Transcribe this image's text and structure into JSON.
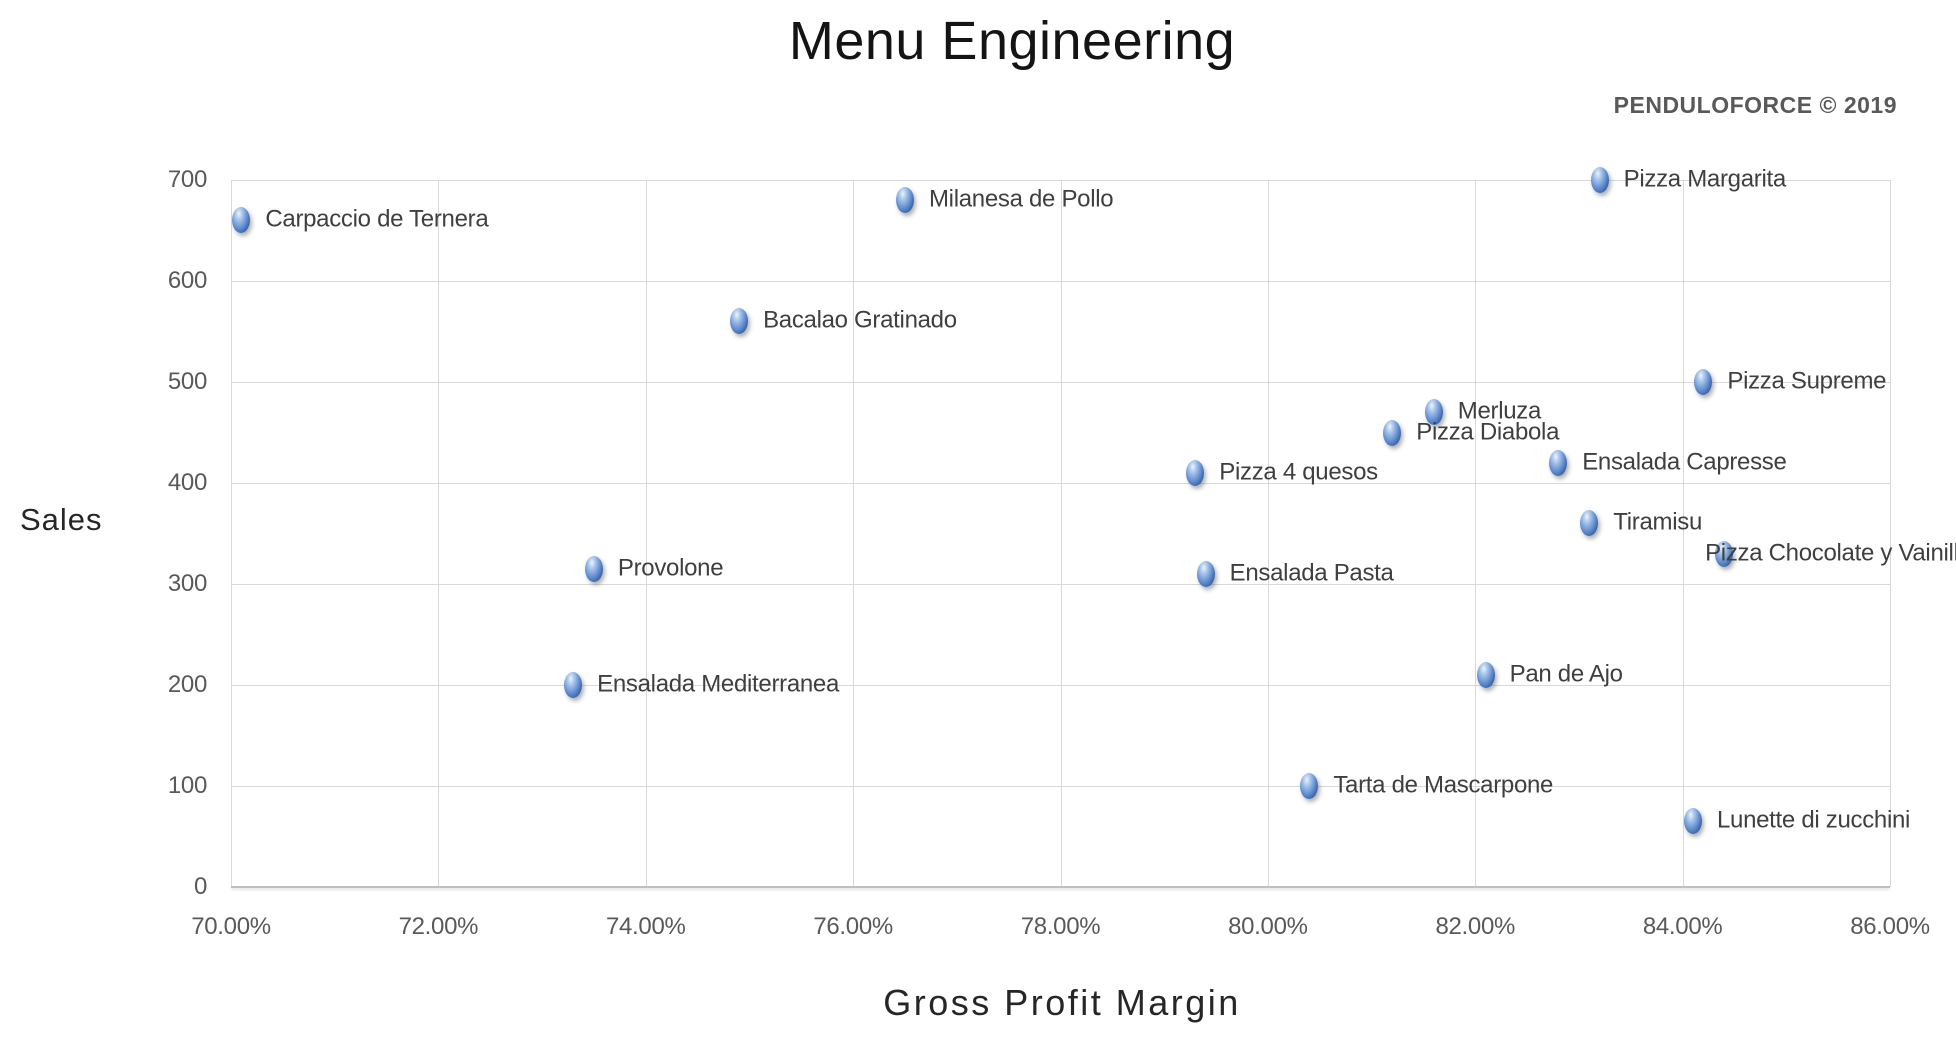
{
  "header": {
    "watermark": "PENDULOFORCE © 2019"
  },
  "colors": {
    "background": "#ffffff",
    "gridline": "#d9d9d9",
    "axis_line": "#bfbfbf",
    "tick_text": "#595959",
    "point_label_text": "#3f3f3f",
    "title_text": "#141414",
    "watermark_text": "#595959",
    "marker_blue_highlight": "#b9d2f0",
    "marker_blue_mid": "#4673b8",
    "marker_blue_dark": "#1d3a6c"
  },
  "chart_data": {
    "type": "scatter",
    "title": "Menu Engineering",
    "xlabel": "Gross Profit Margin",
    "ylabel": "Sales",
    "grid": true,
    "legend": "none",
    "x_axis": {
      "min": 70,
      "max": 86,
      "step": 2,
      "unit": "%",
      "tick_labels": [
        "70.00%",
        "72.00%",
        "74.00%",
        "76.00%",
        "78.00%",
        "80.00%",
        "82.00%",
        "84.00%",
        "86.00%"
      ]
    },
    "y_axis": {
      "min": 0,
      "max": 700,
      "step": 100,
      "tick_labels": [
        "0",
        "100",
        "200",
        "300",
        "400",
        "500",
        "600",
        "700"
      ]
    },
    "points": [
      {
        "label": "Carpaccio de Ternera",
        "gpm": 70.1,
        "sales": 660
      },
      {
        "label": "Milanesa de Pollo",
        "gpm": 76.5,
        "sales": 680
      },
      {
        "label": "Pizza Margarita",
        "gpm": 83.2,
        "sales": 700
      },
      {
        "label": "Bacalao Gratinado",
        "gpm": 74.9,
        "sales": 560
      },
      {
        "label": "Pizza Supreme",
        "gpm": 84.2,
        "sales": 500
      },
      {
        "label": "Merluza",
        "gpm": 81.6,
        "sales": 470
      },
      {
        "label": "Pizza Diabola",
        "gpm": 81.2,
        "sales": 450
      },
      {
        "label": "Ensalada Capresse",
        "gpm": 82.8,
        "sales": 420
      },
      {
        "label": "Pizza 4 quesos",
        "gpm": 79.3,
        "sales": 410
      },
      {
        "label": "Tiramisu",
        "gpm": 83.1,
        "sales": 360
      },
      {
        "label": "Pizza Chocolate y Vainilla",
        "gpm": 84.4,
        "sales": 330,
        "label_dx": -19
      },
      {
        "label": "Provolone",
        "gpm": 73.5,
        "sales": 315
      },
      {
        "label": "Ensalada Pasta",
        "gpm": 79.4,
        "sales": 310
      },
      {
        "label": "Pan de Ajo",
        "gpm": 82.1,
        "sales": 210
      },
      {
        "label": "Ensalada Mediterranea",
        "gpm": 73.3,
        "sales": 200
      },
      {
        "label": "Tarta de Mascarpone",
        "gpm": 80.4,
        "sales": 100
      },
      {
        "label": "Lunette di zucchini",
        "gpm": 84.1,
        "sales": 65
      }
    ]
  }
}
